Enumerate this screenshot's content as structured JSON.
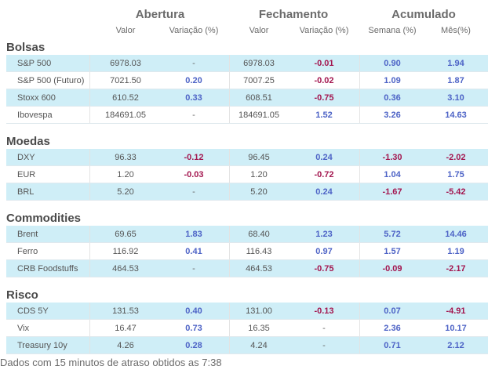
{
  "headers": {
    "abertura": "Abertura",
    "fechamento": "Fechamento",
    "acumulado": "Acumulado",
    "valor": "Valor",
    "variacao": "Variação (%)",
    "semana": "Semana (%)",
    "mes": "Mês(%)"
  },
  "sections": [
    {
      "title": "Bolsas",
      "rows": [
        {
          "label": "S&P 500",
          "open_val": "6978.03",
          "open_var": "-",
          "close_val": "6978.03",
          "close_var": "-0.01",
          "week": "0.90",
          "month": "1.94"
        },
        {
          "label": "S&P 500 (Futuro)",
          "open_val": "7021.50",
          "open_var": "0.20",
          "close_val": "7007.25",
          "close_var": "-0.02",
          "week": "1.09",
          "month": "1.87"
        },
        {
          "label": "Stoxx 600",
          "open_val": "610.52",
          "open_var": "0.33",
          "close_val": "608.51",
          "close_var": "-0.75",
          "week": "0.36",
          "month": "3.10"
        },
        {
          "label": "Ibovespa",
          "open_val": "184691.05",
          "open_var": "-",
          "close_val": "184691.05",
          "close_var": "1.52",
          "week": "3.26",
          "month": "14.63"
        }
      ]
    },
    {
      "title": "Moedas",
      "rows": [
        {
          "label": "DXY",
          "open_val": "96.33",
          "open_var": "-0.12",
          "close_val": "96.45",
          "close_var": "0.24",
          "week": "-1.30",
          "month": "-2.02"
        },
        {
          "label": "EUR",
          "open_val": "1.20",
          "open_var": "-0.03",
          "close_val": "1.20",
          "close_var": "-0.72",
          "week": "1.04",
          "month": "1.75"
        },
        {
          "label": "BRL",
          "open_val": "5.20",
          "open_var": "-",
          "close_val": "5.20",
          "close_var": "0.24",
          "week": "-1.67",
          "month": "-5.42"
        }
      ]
    },
    {
      "title": "Commodities",
      "rows": [
        {
          "label": "Brent",
          "open_val": "69.65",
          "open_var": "1.83",
          "close_val": "68.40",
          "close_var": "1.23",
          "week": "5.72",
          "month": "14.46"
        },
        {
          "label": "Ferro",
          "open_val": "116.92",
          "open_var": "0.41",
          "close_val": "116.43",
          "close_var": "0.97",
          "week": "1.57",
          "month": "1.19"
        },
        {
          "label": "CRB Foodstuffs",
          "open_val": "464.53",
          "open_var": "-",
          "close_val": "464.53",
          "close_var": "-0.75",
          "week": "-0.09",
          "month": "-2.17"
        }
      ]
    },
    {
      "title": "Risco",
      "rows": [
        {
          "label": "CDS 5Y",
          "open_val": "131.53",
          "open_var": "0.40",
          "close_val": "131.00",
          "close_var": "-0.13",
          "week": "0.07",
          "month": "-4.91"
        },
        {
          "label": "Vix",
          "open_val": "16.47",
          "open_var": "0.73",
          "close_val": "16.35",
          "close_var": "-",
          "week": "2.36",
          "month": "10.17"
        },
        {
          "label": "Treasury 10y",
          "open_val": "4.26",
          "open_var": "0.28",
          "close_val": "4.24",
          "close_var": "-",
          "week": "0.71",
          "month": "2.12"
        }
      ]
    }
  ],
  "footer": "Dados com 15 minutos de atraso obtidos as 7:38"
}
